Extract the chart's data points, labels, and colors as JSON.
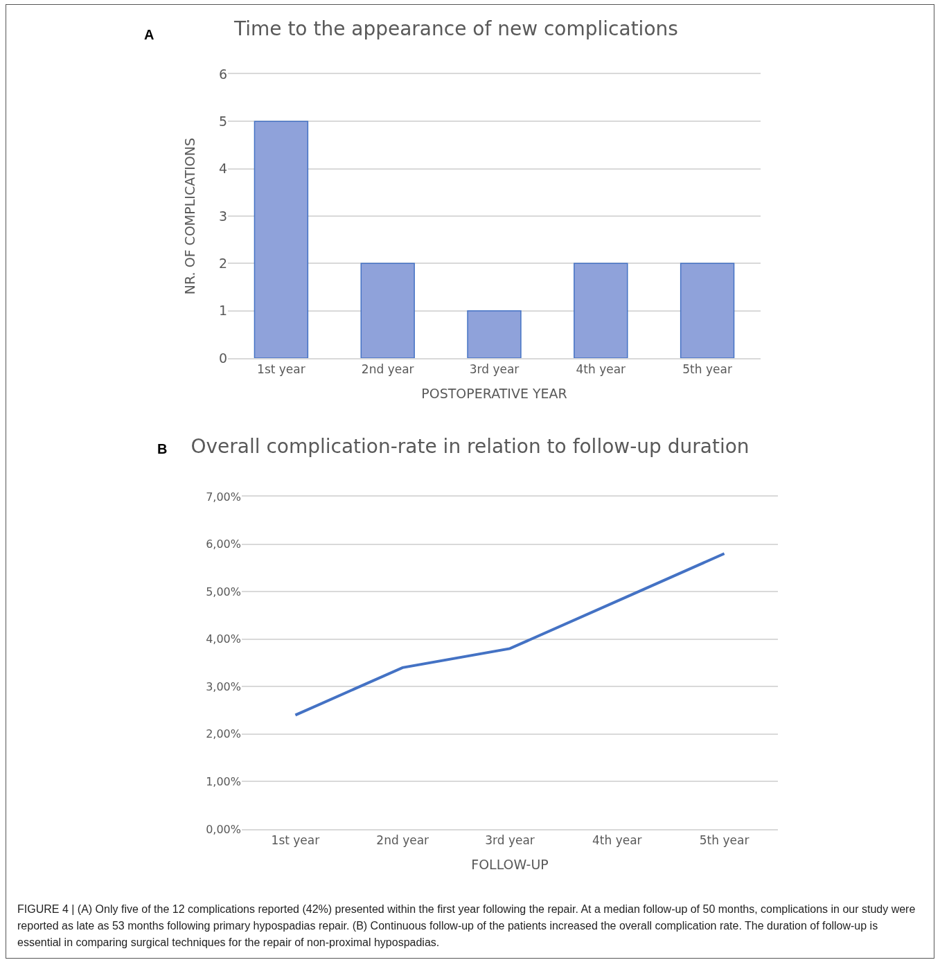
{
  "chart_data": [
    {
      "type": "bar",
      "title": "Time to the appearance of new complications",
      "xlabel": "POSTOPERATIVE YEAR",
      "ylabel": "NR. OF COMPLICATIONS",
      "categories": [
        "1st year",
        "2nd year",
        "3rd year",
        "4th year",
        "5th year"
      ],
      "values": [
        5,
        2,
        1,
        2,
        2
      ],
      "color": "#8fa2da",
      "ylim": [
        0,
        6
      ],
      "yticks": [
        0,
        1,
        2,
        3,
        4,
        5,
        6
      ],
      "grid": "y",
      "annotations": [
        "A"
      ]
    },
    {
      "type": "line",
      "title": "Overall complication-rate in relation to follow-up duration",
      "xlabel": "FOLLOW-UP",
      "categories": [
        "1st year",
        "2nd year",
        "3rd year",
        "4th year",
        "5th year"
      ],
      "values": [
        2.4,
        3.4,
        3.8,
        4.8,
        5.8
      ],
      "color": "#4472c4",
      "marker": "none",
      "line_style": "solid",
      "ylim": [
        0,
        7
      ],
      "yticks": [
        {
          "value": 0,
          "label": "0,00%"
        },
        {
          "value": 1,
          "label": "1,00%"
        },
        {
          "value": 2,
          "label": "2,00%"
        },
        {
          "value": 3,
          "label": "3,00%"
        },
        {
          "value": 4,
          "label": "4,00%"
        },
        {
          "value": 5,
          "label": "5,00%"
        },
        {
          "value": 6,
          "label": "6,00%"
        },
        {
          "value": 7,
          "label": "7,00%"
        }
      ],
      "grid": "y",
      "annotations": [
        "B",
        "FIGURE 4 | (A) Only five of the 12 complications reported (42%) presented within the first year following the repair. At a median follow-up of 50 months, complications in our study were reported as late as 53 months following primary hypospadias repair. (B) Continuous follow-up of the patients increased the overall complication rate. The duration of follow-up is essential in comparing surgical techniques for the repair of non-proximal hypospadias."
      ]
    }
  ]
}
